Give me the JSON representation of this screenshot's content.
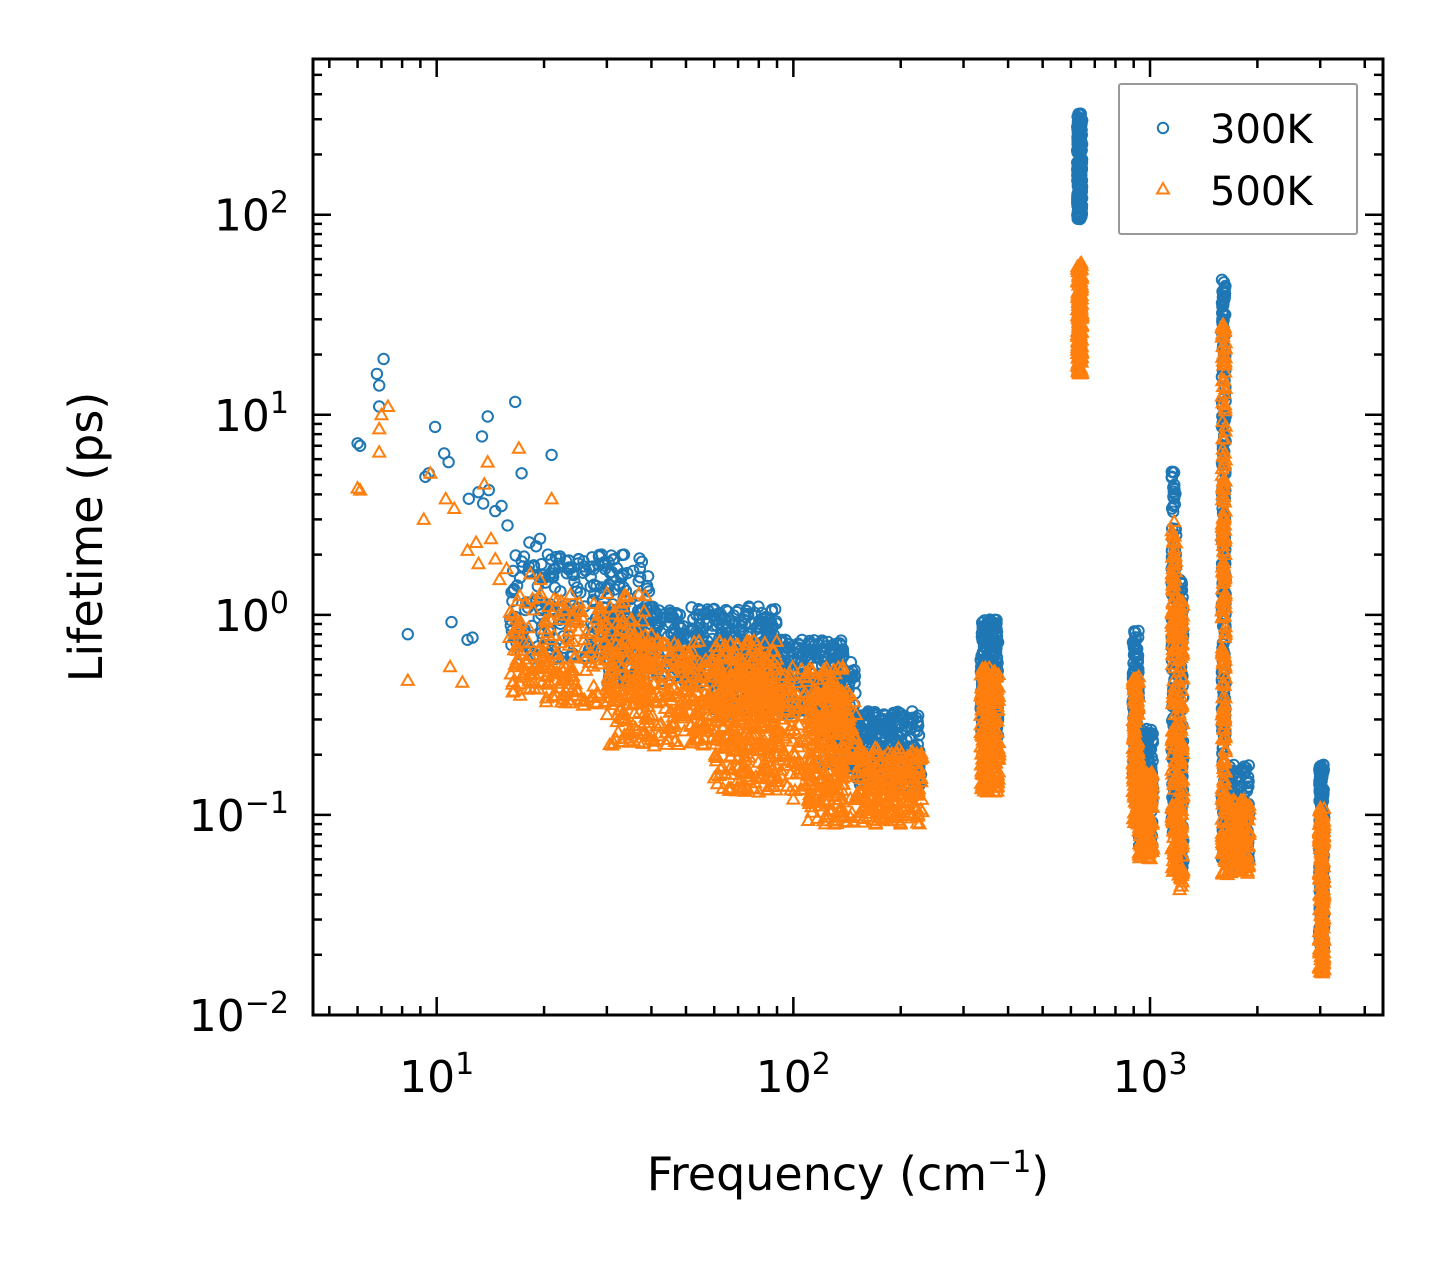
{
  "chart_data": {
    "type": "scatter",
    "title": "",
    "xlabel": "Frequency (cm",
    "xlabel_sup": "−1",
    "xlabel_end": ")",
    "ylabel": "Lifetime (ps)",
    "xscale": "log",
    "yscale": "log",
    "xlim": [
      4.5,
      4500
    ],
    "ylim": [
      0.01,
      600
    ],
    "x_ticks": [
      {
        "base": "10",
        "exp": "1",
        "value": 10
      },
      {
        "base": "10",
        "exp": "2",
        "value": 100
      },
      {
        "base": "10",
        "exp": "3",
        "value": 1000
      }
    ],
    "y_ticks": [
      {
        "base": "10",
        "exp": "−2",
        "value": 0.01
      },
      {
        "base": "10",
        "exp": "−1",
        "value": 0.1
      },
      {
        "base": "10",
        "exp": "0",
        "value": 1
      },
      {
        "base": "10",
        "exp": "1",
        "value": 10
      },
      {
        "base": "10",
        "exp": "2",
        "value": 100
      }
    ],
    "legend_position": "top-right",
    "series": [
      {
        "name": "300K",
        "color": "#1f77b4",
        "marker": "circle",
        "points": [
          [
            6.0,
            7.2
          ],
          [
            6.1,
            7.0
          ],
          [
            6.8,
            16
          ],
          [
            6.9,
            14
          ],
          [
            7.1,
            19
          ],
          [
            6.9,
            11
          ],
          [
            8.3,
            0.8
          ],
          [
            9.3,
            4.9
          ],
          [
            9.5,
            5.1
          ],
          [
            9.9,
            8.7
          ],
          [
            10.5,
            6.4
          ],
          [
            10.8,
            5.8
          ],
          [
            11.0,
            0.92
          ],
          [
            12.2,
            0.75
          ],
          [
            12.6,
            0.77
          ],
          [
            12.3,
            3.8
          ],
          [
            13.1,
            4.1
          ],
          [
            13.4,
            7.8
          ],
          [
            13.9,
            9.8
          ],
          [
            13.5,
            3.6
          ],
          [
            14.0,
            4.2
          ],
          [
            14.6,
            3.3
          ],
          [
            15.2,
            3.5
          ],
          [
            15.8,
            2.8
          ],
          [
            16.6,
            11.6
          ],
          [
            17.3,
            5.1
          ],
          [
            18.2,
            2.3
          ],
          [
            19.0,
            2.2
          ],
          [
            21.0,
            6.3
          ],
          [
            19.5,
            2.4
          ],
          [
            20.5,
            2.0
          ],
          [
            22.0,
            1.8
          ],
          [
            24.0,
            1.6
          ],
          [
            25.0,
            1.9
          ],
          [
            29.0,
            2.0
          ],
          [
            31.5,
            1.9
          ],
          [
            33.5,
            2.0
          ],
          [
            30.5,
            1.4
          ],
          [
            35.0,
            1.2
          ],
          [
            40.0,
            1.1
          ],
          [
            45.0,
            1.05
          ],
          [
            55.0,
            1.05
          ],
          [
            60.0,
            1.0
          ],
          [
            75.0,
            1.1
          ],
          [
            85.0,
            0.7
          ],
          [
            95.0,
            0.75
          ],
          [
            110.0,
            0.65
          ],
          [
            130.0,
            0.5
          ],
          [
            145.0,
            0.58
          ],
          [
            160.0,
            0.28
          ],
          [
            185.0,
            0.3
          ],
          [
            215.0,
            0.3
          ],
          [
            225.0,
            0.25
          ]
        ],
        "clusters": [
          {
            "xmin": 16,
            "xmax": 40,
            "ymin": 0.6,
            "ymax": 2.0,
            "n": 260
          },
          {
            "xmin": 30,
            "xmax": 90,
            "ymin": 0.45,
            "ymax": 1.1,
            "n": 500
          },
          {
            "xmin": 60,
            "xmax": 140,
            "ymin": 0.32,
            "ymax": 0.75,
            "n": 450
          },
          {
            "xmin": 120,
            "xmax": 150,
            "ymin": 0.16,
            "ymax": 0.55,
            "n": 140
          },
          {
            "xmin": 150,
            "xmax": 228,
            "ymin": 0.14,
            "ymax": 0.33,
            "n": 260
          },
          {
            "xmin": 335,
            "xmax": 375,
            "ymin": 0.23,
            "ymax": 0.95,
            "n": 260
          },
          {
            "xmin": 625,
            "xmax": 645,
            "ymin": 95,
            "ymax": 320,
            "n": 220
          },
          {
            "xmin": 895,
            "xmax": 930,
            "ymin": 0.16,
            "ymax": 0.85,
            "n": 150
          },
          {
            "xmin": 930,
            "xmax": 1020,
            "ymin": 0.07,
            "ymax": 0.27,
            "n": 170
          },
          {
            "xmin": 1150,
            "xmax": 1185,
            "ymin": 0.08,
            "ymax": 5.2,
            "n": 150
          },
          {
            "xmin": 1200,
            "xmax": 1240,
            "ymin": 0.05,
            "ymax": 1.5,
            "n": 130
          },
          {
            "xmin": 1590,
            "xmax": 1630,
            "ymin": 0.06,
            "ymax": 48,
            "n": 220
          },
          {
            "xmin": 1630,
            "xmax": 1900,
            "ymin": 0.055,
            "ymax": 0.18,
            "n": 140
          },
          {
            "xmin": 2980,
            "xmax": 3080,
            "ymin": 0.02,
            "ymax": 0.18,
            "n": 200
          }
        ]
      },
      {
        "name": "500K",
        "color": "#ff7f0e",
        "marker": "triangle",
        "points": [
          [
            6.0,
            4.3
          ],
          [
            6.1,
            4.2
          ],
          [
            6.9,
            6.5
          ],
          [
            6.9,
            8.5
          ],
          [
            7.0,
            10
          ],
          [
            7.3,
            11
          ],
          [
            8.3,
            0.47
          ],
          [
            9.2,
            3.0
          ],
          [
            9.6,
            5.1
          ],
          [
            10.6,
            3.8
          ],
          [
            10.9,
            0.55
          ],
          [
            11.2,
            3.4
          ],
          [
            11.8,
            0.46
          ],
          [
            12.2,
            2.1
          ],
          [
            12.9,
            2.3
          ],
          [
            13.1,
            1.8
          ],
          [
            13.6,
            4.5
          ],
          [
            13.9,
            5.8
          ],
          [
            14.2,
            2.4
          ],
          [
            14.6,
            1.9
          ],
          [
            15.0,
            1.5
          ],
          [
            15.7,
            1.7
          ],
          [
            16.6,
            0.55
          ],
          [
            17.0,
            6.8
          ],
          [
            17.4,
            0.5
          ],
          [
            18.3,
            1.6
          ],
          [
            19.5,
            1.5
          ],
          [
            21.0,
            3.8
          ],
          [
            20.6,
            1.1
          ],
          [
            22.0,
            1.0
          ],
          [
            24.0,
            0.95
          ],
          [
            28.0,
            0.95
          ],
          [
            33.0,
            0.9
          ],
          [
            40.0,
            0.8
          ],
          [
            65.0,
            0.25
          ],
          [
            75.0,
            0.15
          ],
          [
            80.0,
            0.13
          ],
          [
            100.0,
            0.12
          ],
          [
            130.0,
            0.09
          ],
          [
            170.0,
            0.09
          ],
          [
            200.0,
            0.09
          ]
        ],
        "clusters": [
          {
            "xmin": 16,
            "xmax": 40,
            "ymin": 0.35,
            "ymax": 1.3,
            "n": 260
          },
          {
            "xmin": 30,
            "xmax": 90,
            "ymin": 0.22,
            "ymax": 0.75,
            "n": 500
          },
          {
            "xmin": 60,
            "xmax": 140,
            "ymin": 0.13,
            "ymax": 0.55,
            "n": 450
          },
          {
            "xmin": 110,
            "xmax": 150,
            "ymin": 0.09,
            "ymax": 0.42,
            "n": 170
          },
          {
            "xmin": 150,
            "xmax": 230,
            "ymin": 0.09,
            "ymax": 0.22,
            "n": 260
          },
          {
            "xmin": 335,
            "xmax": 378,
            "ymin": 0.13,
            "ymax": 0.55,
            "n": 260
          },
          {
            "xmin": 625,
            "xmax": 645,
            "ymin": 16,
            "ymax": 58,
            "n": 200
          },
          {
            "xmin": 895,
            "xmax": 930,
            "ymin": 0.09,
            "ymax": 0.5,
            "n": 150
          },
          {
            "xmin": 930,
            "xmax": 1020,
            "ymin": 0.06,
            "ymax": 0.17,
            "n": 170
          },
          {
            "xmin": 1150,
            "xmax": 1185,
            "ymin": 0.05,
            "ymax": 3.0,
            "n": 150
          },
          {
            "xmin": 1200,
            "xmax": 1240,
            "ymin": 0.042,
            "ymax": 1.2,
            "n": 130
          },
          {
            "xmin": 1590,
            "xmax": 1630,
            "ymin": 0.05,
            "ymax": 29,
            "n": 220
          },
          {
            "xmin": 1630,
            "xmax": 1900,
            "ymin": 0.05,
            "ymax": 0.12,
            "n": 140
          },
          {
            "xmin": 2980,
            "xmax": 3080,
            "ymin": 0.016,
            "ymax": 0.11,
            "n": 200
          }
        ]
      }
    ]
  }
}
